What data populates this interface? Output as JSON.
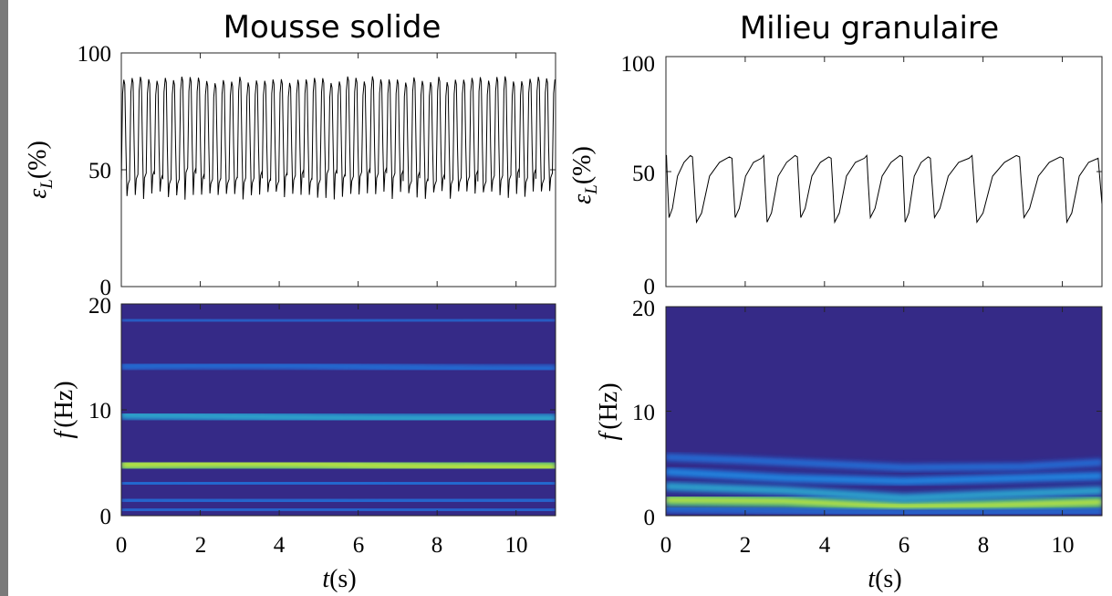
{
  "chart_data": [
    {
      "type": "line",
      "panel": "top-left",
      "title": "Mousse solide",
      "ylabel_symbol": "ε",
      "ylabel_subscript": "L",
      "ylabel_unit": "(%)",
      "ylim": [
        0,
        100
      ],
      "yticks": [
        "0",
        "50",
        "100"
      ],
      "xlim": [
        0,
        11
      ],
      "series": [
        {
          "period_s": 0.21,
          "max_pct": 90,
          "min_pct": 39,
          "shoulder_pct": 45
        }
      ]
    },
    {
      "type": "heatmap",
      "panel": "bottom-left",
      "ylabel_symbol": "f",
      "ylabel_unit": "(Hz)",
      "ylim": [
        0,
        20
      ],
      "yticks": [
        "0",
        "10",
        "20"
      ],
      "xlabel_symbol": "t",
      "xlabel_unit": "(s)",
      "xlim": [
        0,
        11
      ],
      "xticks": [
        "0",
        "2",
        "4",
        "6",
        "8",
        "10"
      ],
      "bands": [
        {
          "f_start": 4.8,
          "f_end": 4.6,
          "intensity": 1.0
        },
        {
          "f_start": 9.5,
          "f_end": 9.2,
          "intensity": 0.55
        },
        {
          "f_start": 14.1,
          "f_end": 13.9,
          "intensity": 0.3
        },
        {
          "f_start": 18.5,
          "f_end": 18.5,
          "intensity": 0.15
        },
        {
          "f_start": 3.0,
          "f_end": 3.0,
          "intensity": 0.35
        },
        {
          "f_start": 1.5,
          "f_end": 1.5,
          "intensity": 0.3
        },
        {
          "f_start": 0.5,
          "f_end": 0.5,
          "intensity": 0.25
        }
      ]
    },
    {
      "type": "line",
      "panel": "top-right",
      "title": "Milieu granulaire",
      "ylabel_symbol": "ε",
      "ylabel_subscript": "L",
      "ylabel_unit": "(%)",
      "ylim": [
        0,
        100
      ],
      "yticks": [
        "0",
        "50",
        "100"
      ],
      "xlim": [
        0,
        11
      ],
      "series": [
        {
          "cycle_ends_s": [
            0.65,
            1.65,
            2.45,
            3.3,
            4.15,
            5.05,
            5.95,
            6.65,
            7.7,
            8.9,
            10.0,
            10.95
          ],
          "max_pct": 57,
          "min_pct": 30
        }
      ]
    },
    {
      "type": "heatmap",
      "panel": "bottom-right",
      "ylabel_symbol": "f",
      "ylabel_unit": "(Hz)",
      "ylim": [
        0,
        20
      ],
      "yticks": [
        "0",
        "10",
        "20"
      ],
      "xlabel_symbol": "t",
      "xlabel_unit": "(s)",
      "xlim": [
        0,
        11
      ],
      "xticks": [
        "0",
        "2",
        "4",
        "6",
        "8",
        "10"
      ],
      "bands": [
        {
          "points": [
            [
              0,
              1.5
            ],
            [
              3,
              1.4
            ],
            [
              6,
              0.9
            ],
            [
              8,
              1.0
            ],
            [
              11,
              1.3
            ]
          ],
          "intensity": 1.0
        },
        {
          "points": [
            [
              0,
              2.8
            ],
            [
              3,
              2.4
            ],
            [
              6,
              1.7
            ],
            [
              8,
              2.0
            ],
            [
              11,
              2.4
            ]
          ],
          "intensity": 0.55
        },
        {
          "points": [
            [
              0,
              4.2
            ],
            [
              3,
              3.6
            ],
            [
              6,
              3.3
            ],
            [
              8,
              3.5
            ],
            [
              11,
              3.8
            ]
          ],
          "intensity": 0.45
        },
        {
          "points": [
            [
              0,
              5.6
            ],
            [
              2,
              5.3
            ],
            [
              6,
              4.6
            ],
            [
              9,
              4.7
            ],
            [
              11,
              5.1
            ]
          ],
          "intensity": 0.3
        },
        {
          "points": [
            [
              0,
              0.6
            ],
            [
              6,
              0.3
            ],
            [
              11,
              0.4
            ]
          ],
          "intensity": 0.25
        }
      ]
    }
  ]
}
